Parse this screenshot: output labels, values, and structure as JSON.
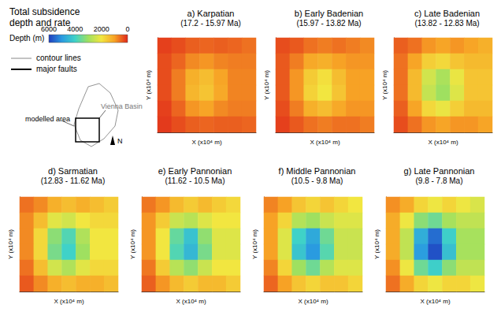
{
  "figure": {
    "title": "Total subsidence depth and rate",
    "colorbar": {
      "label": "Depth (m)",
      "range": [
        0,
        6000
      ],
      "ticks": [
        6000,
        4000,
        2000,
        0
      ],
      "colors": [
        "#1f3fbf",
        "#2a9be0",
        "#3fd2c8",
        "#9fe060",
        "#f2e640",
        "#f7a225",
        "#e0281a"
      ]
    },
    "legend_items": [
      {
        "label": "contour lines",
        "line_style": "thin",
        "color": "#888888"
      },
      {
        "label": "major faults",
        "line_style": "thick",
        "color": "#000000"
      }
    ],
    "inset": {
      "area_label": "modelled area",
      "basin_label": "Vienna Basin",
      "north": "N"
    }
  },
  "chart_data": [
    {
      "type": "heatmap",
      "title": "a) Karpatian",
      "subtitle": "(17.2 - 15.97 Ma)",
      "x_label": "X (x10⁴ m)",
      "y_label": "Y (x10⁴ m)",
      "tick_labels": false,
      "grid": false,
      "values": [
        [
          200,
          300,
          450,
          500,
          450,
          500,
          600
        ],
        [
          300,
          500,
          800,
          900,
          750,
          700,
          700
        ],
        [
          300,
          700,
          1200,
          1400,
          1050,
          750,
          750
        ],
        [
          300,
          700,
          1300,
          1500,
          1100,
          750,
          750
        ],
        [
          200,
          500,
          900,
          1050,
          800,
          700,
          700
        ],
        [
          150,
          300,
          450,
          500,
          450,
          450,
          500
        ]
      ]
    },
    {
      "type": "heatmap",
      "title": "b) Early Badenian",
      "subtitle": "(15.97 - 13.82 Ma)",
      "x_label": "X (x10⁴ m)",
      "y_label": "Y (x10⁴ m)",
      "tick_labels": false,
      "grid": false,
      "values": [
        [
          300,
          400,
          600,
          700,
          600,
          700,
          800
        ],
        [
          400,
          700,
          1100,
          1200,
          1000,
          900,
          900
        ],
        [
          400,
          900,
          1600,
          1900,
          1400,
          1000,
          1000
        ],
        [
          400,
          900,
          1700,
          2000,
          1500,
          1000,
          1000
        ],
        [
          300,
          700,
          1200,
          1400,
          1100,
          900,
          900
        ],
        [
          200,
          400,
          600,
          700,
          600,
          600,
          700
        ]
      ]
    },
    {
      "type": "heatmap",
      "title": "c) Late Badenian",
      "subtitle": "(13.82 - 12.83 Ma)",
      "x_label": "X (x10⁴ m)",
      "y_label": "Y (x10⁴ m)",
      "tick_labels": false,
      "grid": false,
      "values": [
        [
          450,
          600,
          900,
          1050,
          900,
          1050,
          1200
        ],
        [
          600,
          1050,
          1650,
          1800,
          1500,
          1350,
          1350
        ],
        [
          600,
          1350,
          2400,
          2850,
          2100,
          1500,
          1500
        ],
        [
          600,
          1350,
          2550,
          3000,
          2250,
          1500,
          1500
        ],
        [
          450,
          1050,
          1800,
          2100,
          1650,
          1350,
          1350
        ],
        [
          300,
          600,
          900,
          1050,
          900,
          900,
          1050
        ]
      ]
    },
    {
      "type": "heatmap",
      "title": "d) Sarmatian",
      "subtitle": "(12.83 - 11.62 Ma)",
      "x_label": "X (x10⁴ m)",
      "y_label": "Y (x10⁴ m)",
      "tick_labels": false,
      "grid": false,
      "values": [
        [
          600,
          800,
          1200,
          1400,
          1200,
          1400,
          1600
        ],
        [
          800,
          1400,
          2200,
          2400,
          2000,
          1800,
          1800
        ],
        [
          800,
          1800,
          3200,
          3800,
          2800,
          2000,
          2000
        ],
        [
          800,
          1800,
          3400,
          4000,
          3000,
          2000,
          2000
        ],
        [
          600,
          1400,
          2400,
          2800,
          2200,
          1800,
          1800
        ],
        [
          400,
          800,
          1200,
          1400,
          1200,
          1200,
          1400
        ]
      ]
    },
    {
      "type": "heatmap",
      "title": "e) Early Pannonian",
      "subtitle": "(11.62 - 10.5 Ma)",
      "x_label": "X (x10⁴ m)",
      "y_label": "Y (x10⁴ m)",
      "tick_labels": false,
      "grid": false,
      "values": [
        [
          650,
          900,
          1350,
          1600,
          1350,
          1600,
          1800
        ],
        [
          900,
          1600,
          2500,
          2700,
          2250,
          2000,
          2000
        ],
        [
          900,
          2000,
          3600,
          4300,
          3150,
          2250,
          2250
        ],
        [
          900,
          2000,
          3800,
          4500,
          3400,
          2250,
          2250
        ],
        [
          650,
          1600,
          2700,
          3150,
          2500,
          2000,
          2000
        ],
        [
          450,
          900,
          1350,
          1600,
          1350,
          1350,
          1600
        ]
      ]
    },
    {
      "type": "heatmap",
      "title": "f) Middle Pannonian",
      "subtitle": "(10.5 - 9.8 Ma)",
      "x_label": "X (x10⁴ m)",
      "y_label": "Y (x10⁴ m)",
      "tick_labels": false,
      "grid": false,
      "values": [
        [
          750,
          1000,
          1500,
          1750,
          1500,
          1750,
          2000
        ],
        [
          1000,
          1750,
          2750,
          3000,
          2500,
          2250,
          2250
        ],
        [
          1000,
          2250,
          4000,
          4750,
          3500,
          2500,
          2500
        ],
        [
          1000,
          2250,
          4250,
          5000,
          3750,
          2500,
          2500
        ],
        [
          750,
          1750,
          3000,
          3500,
          2750,
          2250,
          2250
        ],
        [
          500,
          1000,
          1500,
          1750,
          1500,
          1500,
          1750
        ]
      ]
    },
    {
      "type": "heatmap",
      "title": "g) Late Pannonian",
      "subtitle": "(9.8 - 7.8 Ma)",
      "x_label": "X (x10⁴ m)",
      "y_label": "Y (x10⁴ m)",
      "tick_labels": false,
      "grid": false,
      "values": [
        [
          850,
          1150,
          1750,
          2050,
          1750,
          2050,
          2300
        ],
        [
          1150,
          2050,
          3200,
          3500,
          2900,
          2600,
          2600
        ],
        [
          1150,
          2600,
          4650,
          5500,
          4050,
          2900,
          2900
        ],
        [
          1150,
          2600,
          4950,
          5800,
          4350,
          2900,
          2900
        ],
        [
          850,
          2050,
          3500,
          4050,
          3200,
          2600,
          2600
        ],
        [
          600,
          1150,
          1750,
          2050,
          1750,
          1750,
          2050
        ]
      ]
    }
  ]
}
